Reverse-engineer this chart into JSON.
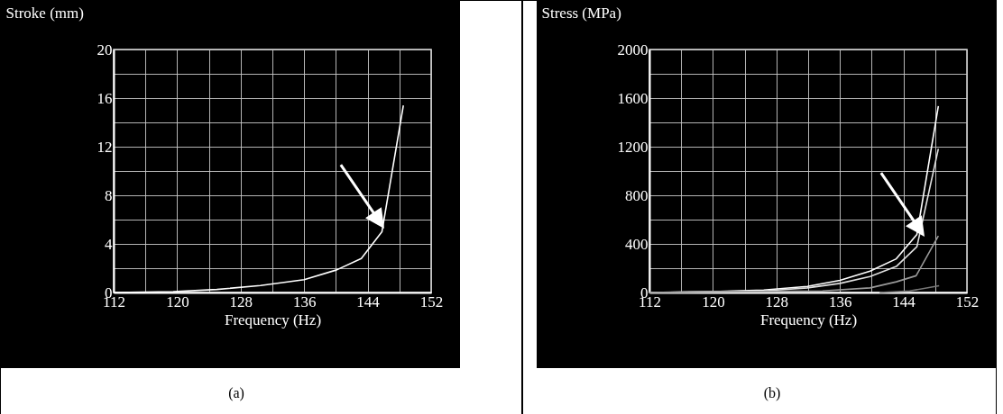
{
  "chart_data": [
    {
      "type": "line",
      "ylabel": "Stroke (mm)",
      "xlabel": "Frequency (Hz)",
      "annotations": [
        "(a)"
      ],
      "x": [
        112,
        119.5,
        125,
        130.5,
        136,
        140.1,
        143.2,
        145.8,
        148.5
      ],
      "series": [
        {
          "color": "#ffffff",
          "values": [
            0,
            0.07,
            0.25,
            0.57,
            1.06,
            1.86,
            2.8,
            5,
            15.4
          ]
        }
      ],
      "xlim": [
        112,
        152
      ],
      "ylim": [
        0,
        20
      ],
      "xticks": [
        112,
        {
          "value": 116,
          "label": null
        },
        120,
        {
          "value": 124,
          "label": null
        },
        128,
        {
          "value": 132,
          "label": null
        },
        136,
        {
          "value": 140,
          "label": null
        },
        144,
        {
          "value": 148,
          "label": null
        },
        152
      ],
      "yticks": [
        0,
        {
          "value": 2,
          "label": null
        },
        4,
        {
          "value": 6,
          "label": null
        },
        8,
        {
          "value": 10,
          "label": null
        },
        12,
        {
          "value": 14,
          "label": null
        },
        16,
        {
          "value": 18,
          "label": null
        },
        20
      ],
      "grid": true,
      "marker": "none",
      "line_style": "solid"
    },
    {
      "type": "line",
      "ylabel": "Stress (MPa)",
      "xlabel": "Frequency (Hz)",
      "annotations": [
        "(b)"
      ],
      "series": [
        {
          "color": "#ffffff",
          "x": [
            112,
            119,
            126.4,
            131.9,
            136,
            139.8,
            143.1,
            145.7,
            148.4
          ],
          "values": [
            0,
            5,
            20,
            50,
            100,
            176,
            277,
            478,
            1535
          ]
        },
        {
          "color": "#e0e0e0",
          "x": [
            112,
            126.4,
            131.9,
            136,
            139.8,
            143.1,
            145.7,
            148.4
          ],
          "values": [
            0,
            13,
            38,
            75,
            131,
            214,
            377,
            1182
          ]
        },
        {
          "color": "#9a9a9a",
          "x": [
            112,
            133.8,
            139.8,
            143.1,
            145.6,
            148.4
          ],
          "values": [
            0,
            13,
            38,
            88,
            138,
            465
          ]
        },
        {
          "color": "#777777",
          "x": [
            141,
            144.8,
            148.5
          ],
          "values": [
            0,
            13,
            55
          ]
        }
      ],
      "xlim": [
        112,
        152
      ],
      "ylim": [
        0,
        2000
      ],
      "xticks": [
        112,
        {
          "value": 116,
          "label": null
        },
        120,
        {
          "value": 124,
          "label": null
        },
        128,
        {
          "value": 132,
          "label": null
        },
        136,
        {
          "value": 140,
          "label": null
        },
        144,
        {
          "value": 148,
          "label": null
        },
        152
      ],
      "yticks": [
        0,
        {
          "value": 200,
          "label": null
        },
        400,
        {
          "value": 600,
          "label": null
        },
        800,
        {
          "value": 1000,
          "label": null
        },
        1200,
        {
          "value": 1400,
          "label": null
        },
        1600,
        {
          "value": 1800,
          "label": null
        },
        2000
      ],
      "grid": true,
      "marker": "none",
      "line_style": "solid"
    }
  ]
}
